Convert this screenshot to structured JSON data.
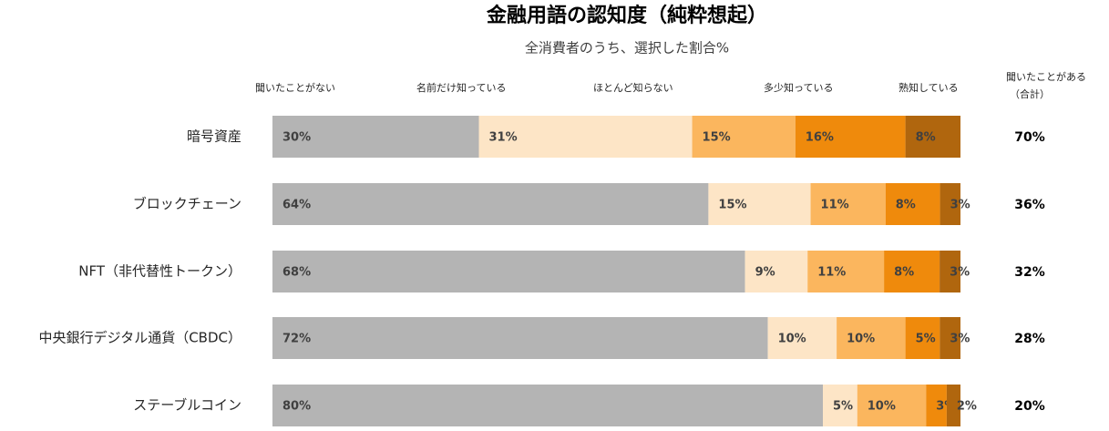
{
  "chart_data": {
    "type": "stacked_bar_horizontal",
    "title": "金融用語の認知度（純粋想起）",
    "subtitle": "全消費者のうち、選択した割合%",
    "categories": [
      "暗号資産",
      "ブロックチェーン",
      "NFT（非代替性トークン）",
      "中央銀行デジタル通貨（CBDC）",
      "ステーブルコイン"
    ],
    "series": [
      {
        "name": "聞いたことがない",
        "color": "#b4b4b4",
        "values": [
          30,
          64,
          68,
          72,
          80
        ],
        "value_labels": [
          "30%",
          "64%",
          "68%",
          "72%",
          "80%"
        ]
      },
      {
        "name": "名前だけ知っている",
        "color": "#fde5c6",
        "values": [
          31,
          15,
          9,
          10,
          5
        ],
        "value_labels": [
          "31%",
          "15%",
          "9%",
          "10%",
          "5%"
        ]
      },
      {
        "name": "ほとんど知らない",
        "color": "#fbb65e",
        "values": [
          15,
          11,
          11,
          10,
          10
        ],
        "value_labels": [
          "15%",
          "11%",
          "11%",
          "10%",
          "10%"
        ]
      },
      {
        "name": "多少知っている",
        "color": "#ef8a0c",
        "values": [
          16,
          8,
          8,
          5,
          3
        ],
        "value_labels": [
          "16%",
          "8%",
          "8%",
          "5%",
          "3%"
        ]
      },
      {
        "name": "熟知している",
        "color": "#b0660e",
        "values": [
          8,
          3,
          3,
          3,
          2
        ],
        "value_labels": [
          "8%",
          "3%",
          "3%",
          "3%",
          "2%"
        ]
      }
    ],
    "totals": {
      "label": [
        "聞いたことがある",
        "（合計）"
      ],
      "values": [
        70,
        36,
        32,
        28,
        20
      ],
      "value_labels": [
        "70%",
        "36%",
        "32%",
        "28%",
        "20%"
      ]
    }
  }
}
